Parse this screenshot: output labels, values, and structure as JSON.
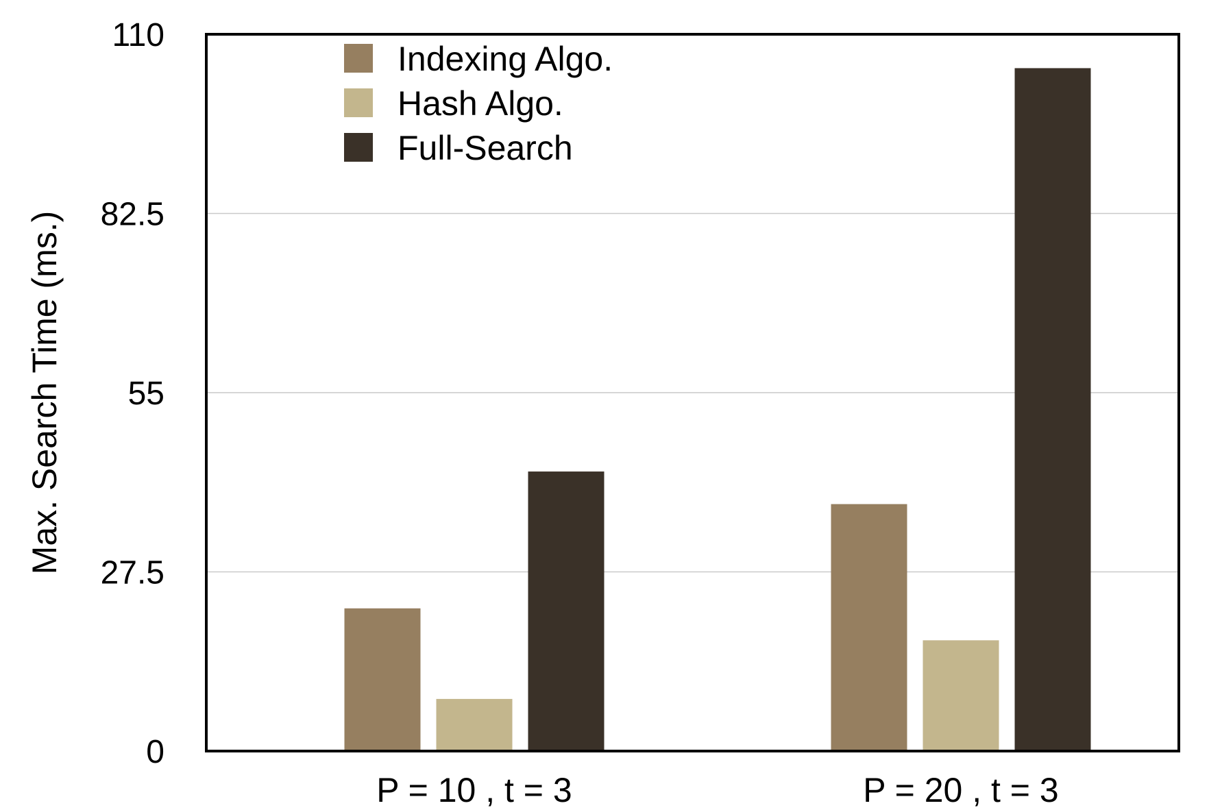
{
  "chart_data": {
    "type": "bar",
    "title": "",
    "xlabel": "",
    "ylabel": "Max. Search Time (ms.)",
    "ylim": [
      0,
      110
    ],
    "yticks": [
      "0",
      "27.5",
      "55",
      "82.5",
      "110"
    ],
    "categories": [
      "P = 10 , t = 3",
      "P = 20 , t = 3"
    ],
    "series": [
      {
        "name": "Indexing Algo.",
        "color": "#967F60",
        "values": [
          21.9,
          37.9
        ]
      },
      {
        "name": "Hash Algo.",
        "color": "#C3B68D",
        "values": [
          8.0,
          17.0
        ]
      },
      {
        "name": "Full-Search",
        "color": "#3A3128",
        "values": [
          42.9,
          104.8
        ]
      }
    ],
    "grid": true,
    "legend_position": "top-left"
  }
}
